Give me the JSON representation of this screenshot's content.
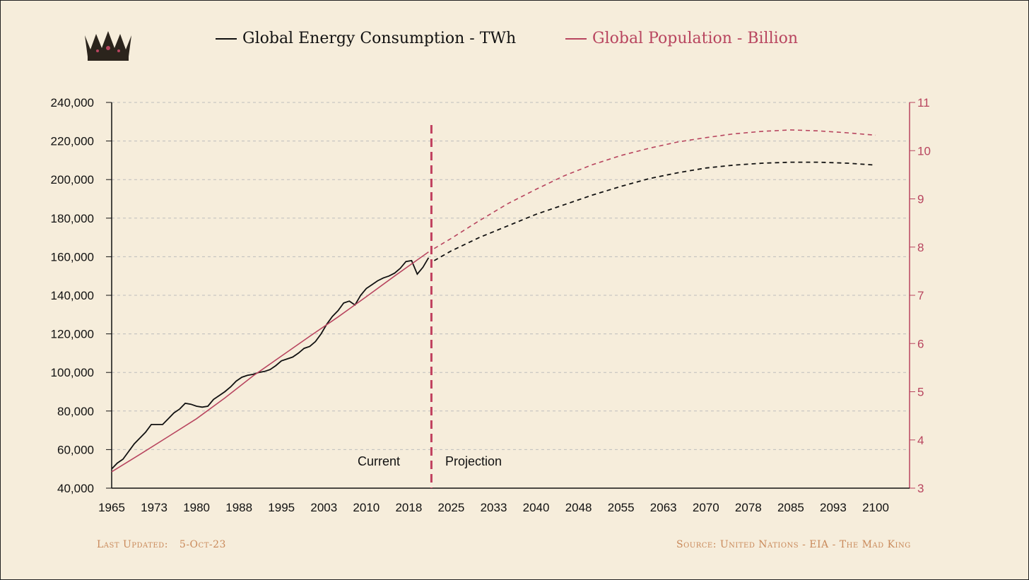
{
  "legend": {
    "energy_label": "Global Energy Consumption - TWh",
    "population_label": "Global Population - Billion"
  },
  "logo": {
    "icon": "crown-icon"
  },
  "annotations": {
    "current": "Current",
    "projection": "Projection"
  },
  "footer": {
    "last_updated_label": "Last Updated:",
    "last_updated_value": "5-Oct-23",
    "source": "Source: United Nations - EIA - The Mad King"
  },
  "colors": {
    "energy": "#111111",
    "population": "#b8455f",
    "divider": "#c0405f",
    "grid": "#bdbdbd",
    "footer": "#c9895a",
    "background": "#f6eddb"
  },
  "chart_data": {
    "type": "line",
    "x_range": [
      1965,
      2100
    ],
    "x_ticks": [
      "1965",
      "1973",
      "1980",
      "1988",
      "1995",
      "2003",
      "2010",
      "2018",
      "2025",
      "2033",
      "2040",
      "2048",
      "2055",
      "2063",
      "2070",
      "2078",
      "2085",
      "2093",
      "2100"
    ],
    "y_left": {
      "range": [
        40000,
        240000
      ],
      "ticks": [
        "40,000",
        "60,000",
        "80,000",
        "100,000",
        "120,000",
        "140,000",
        "160,000",
        "180,000",
        "200,000",
        "220,000",
        "240,000"
      ]
    },
    "y_right": {
      "range": [
        3,
        11
      ],
      "ticks": [
        "3",
        "4",
        "5",
        "6",
        "7",
        "8",
        "9",
        "10",
        "11"
      ]
    },
    "grid": true,
    "divider_year": 2021.5,
    "series": [
      {
        "name": "Global Energy Consumption - TWh",
        "axis": "left",
        "style": "solid",
        "x": [
          1965,
          1966,
          1967,
          1968,
          1969,
          1970,
          1971,
          1972,
          1973,
          1974,
          1975,
          1976,
          1977,
          1978,
          1979,
          1980,
          1981,
          1982,
          1983,
          1984,
          1985,
          1986,
          1987,
          1988,
          1989,
          1990,
          1991,
          1992,
          1993,
          1994,
          1995,
          1996,
          1997,
          1998,
          1999,
          2000,
          2001,
          2002,
          2003,
          2004,
          2005,
          2006,
          2007,
          2008,
          2009,
          2010,
          2011,
          2012,
          2013,
          2014,
          2015,
          2016,
          2017,
          2018,
          2019,
          2020,
          2021
        ],
        "values": [
          50000,
          53000,
          55000,
          59000,
          63000,
          66000,
          69000,
          73000,
          73000,
          73000,
          76000,
          79000,
          81000,
          84000,
          83500,
          82500,
          82000,
          82500,
          86000,
          88000,
          90000,
          92500,
          95500,
          97500,
          98500,
          99000,
          100000,
          100500,
          101500,
          103500,
          106000,
          107000,
          108000,
          110000,
          112500,
          113500,
          116000,
          120000,
          125000,
          129000,
          132000,
          136000,
          137000,
          135000,
          140000,
          143500,
          145500,
          147500,
          149000,
          150000,
          151500,
          154000,
          157500,
          158000,
          151000,
          154500,
          159500
        ]
      },
      {
        "name": "Global Energy Consumption - TWh",
        "axis": "left",
        "style": "dashed",
        "x": [
          2022,
          2025,
          2030,
          2035,
          2040,
          2045,
          2050,
          2055,
          2060,
          2065,
          2070,
          2075,
          2080,
          2085,
          2090,
          2095,
          2100
        ],
        "values": [
          158000,
          163000,
          170000,
          176000,
          182000,
          187000,
          192000,
          196500,
          200500,
          203500,
          206000,
          207500,
          208500,
          209000,
          209000,
          208500,
          207500
        ]
      },
      {
        "name": "Global Population - Billion",
        "axis": "right",
        "style": "solid",
        "x": [
          1965,
          1970,
          1975,
          1980,
          1985,
          1990,
          1995,
          2000,
          2005,
          2010,
          2015,
          2018,
          2021
        ],
        "values": [
          3.34,
          3.7,
          4.07,
          4.44,
          4.87,
          5.33,
          5.74,
          6.15,
          6.55,
          6.97,
          7.4,
          7.65,
          7.9
        ]
      },
      {
        "name": "Global Population - Billion",
        "axis": "right",
        "style": "dashed",
        "x": [
          2022,
          2025,
          2030,
          2035,
          2040,
          2045,
          2050,
          2055,
          2060,
          2065,
          2070,
          2075,
          2080,
          2085,
          2090,
          2095,
          2100
        ],
        "values": [
          7.97,
          8.18,
          8.55,
          8.9,
          9.2,
          9.48,
          9.71,
          9.9,
          10.05,
          10.18,
          10.27,
          10.35,
          10.4,
          10.43,
          10.41,
          10.37,
          10.32
        ]
      }
    ]
  }
}
